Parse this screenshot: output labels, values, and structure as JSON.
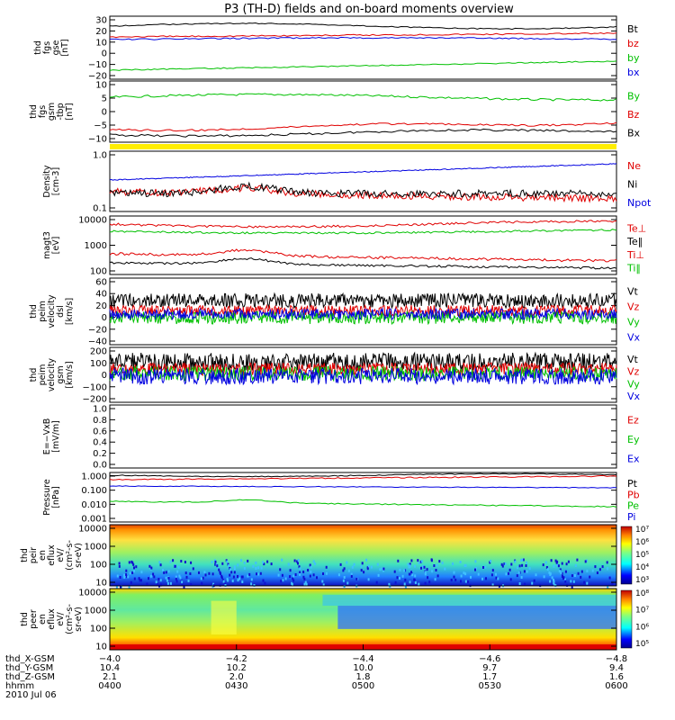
{
  "title": "P3 (TH-D) fields and on-board moments overview",
  "panels": [
    {
      "id": "fgs_gse",
      "ylabel": [
        "thd",
        "fgs",
        "gse",
        "[nT]"
      ],
      "ticks": [
        "30",
        "20",
        "10",
        "0",
        "−10",
        "−20"
      ],
      "legend": [
        {
          "text": "Bt",
          "color": "#000000"
        },
        {
          "text": "bz",
          "color": "#e00000"
        },
        {
          "text": "by",
          "color": "#00c000"
        },
        {
          "text": "bx",
          "color": "#0000e0"
        }
      ]
    },
    {
      "id": "fgs_gsm",
      "ylabel": [
        "thd",
        "fgs",
        "gsm",
        "-tbp",
        "[nT]"
      ],
      "ticks": [
        "10",
        "5",
        "0",
        "−5",
        "−10"
      ],
      "legend": [
        {
          "text": "By",
          "color": "#00c000"
        },
        {
          "text": "Bz",
          "color": "#e00000"
        },
        {
          "text": "Bx",
          "color": "#000000"
        }
      ]
    },
    {
      "id": "density",
      "ylabel": [
        "Density",
        "[cm-3]"
      ],
      "ticks": [
        "1.0",
        "0.1"
      ],
      "legend": [
        {
          "text": "Ne",
          "color": "#e00000"
        },
        {
          "text": "Ni",
          "color": "#000000"
        },
        {
          "text": "Npot",
          "color": "#0000e0"
        }
      ]
    },
    {
      "id": "temp",
      "ylabel": [
        "magt3",
        "[eV]"
      ],
      "ticks": [
        "10000",
        "1000",
        "100"
      ],
      "legend": [
        {
          "text": "Te⊥",
          "color": "#e00000"
        },
        {
          "text": "Te‖",
          "color": "#000000"
        },
        {
          "text": "Ti⊥",
          "color": "#e00000"
        },
        {
          "text": "Ti‖",
          "color": "#00c000"
        }
      ]
    },
    {
      "id": "velocity_dsl",
      "ylabel": [
        "thd",
        "peim",
        "velocity",
        "dsl",
        "[km/s]"
      ],
      "ticks": [
        "60",
        "40",
        "20",
        "0",
        "−20",
        "−40"
      ],
      "legend": [
        {
          "text": "Vt",
          "color": "#000000"
        },
        {
          "text": "Vz",
          "color": "#e00000"
        },
        {
          "text": "Vy",
          "color": "#00c000"
        },
        {
          "text": "Vx",
          "color": "#0000e0"
        }
      ]
    },
    {
      "id": "velocity_gsm",
      "ylabel": [
        "thd",
        "peim",
        "velocity",
        "gsm",
        "[km/s]"
      ],
      "ticks": [
        "200",
        "100",
        "0",
        "−100",
        "−200"
      ],
      "legend": [
        {
          "text": "Vt",
          "color": "#000000"
        },
        {
          "text": "Vz",
          "color": "#e00000"
        },
        {
          "text": "Vy",
          "color": "#00c000"
        },
        {
          "text": "Vx",
          "color": "#0000e0"
        }
      ]
    },
    {
      "id": "efield",
      "ylabel": [
        "E=−VxB",
        "[mV/m]"
      ],
      "ticks": [
        "1.0",
        "0.8",
        "0.6",
        "0.4",
        "0.2",
        "0.0"
      ],
      "legend": [
        {
          "text": "Ez",
          "color": "#e00000"
        },
        {
          "text": "Ey",
          "color": "#00c000"
        },
        {
          "text": "Ex",
          "color": "#0000e0"
        }
      ]
    },
    {
      "id": "pressure",
      "ylabel": [
        "Pressure",
        "[nPa]"
      ],
      "ticks": [
        "1.000",
        "0.100",
        "0.010",
        "0.001"
      ],
      "legend": [
        {
          "text": "Pt",
          "color": "#000000"
        },
        {
          "text": "Pb",
          "color": "#e00000"
        },
        {
          "text": "Pe",
          "color": "#00c000"
        },
        {
          "text": "Pi",
          "color": "#0000e0"
        }
      ]
    },
    {
      "id": "peir",
      "ylabel": [
        "thd",
        "peir",
        "en",
        "eflux",
        "eV/",
        "(cm²-s-",
        "sr-eV)"
      ],
      "ticks": [
        "10000",
        "1000",
        "100",
        "10"
      ],
      "colorbar": [
        "10⁷",
        "10⁶",
        "10⁵",
        "10⁴",
        "10³"
      ]
    },
    {
      "id": "peer",
      "ylabel": [
        "thd",
        "peer",
        "en",
        "eflux",
        "eV/",
        "(cm²-s-",
        "sr-eV)"
      ],
      "ticks": [
        "10000",
        "1000",
        "100",
        "10"
      ],
      "colorbar": [
        "10⁸",
        "10⁷",
        "10⁶",
        "10⁵"
      ]
    }
  ],
  "xaxis": {
    "rows": [
      {
        "label": "thd_X-GSM",
        "values": [
          "−4.0",
          "−4.2",
          "−4.4",
          "−4.6",
          "−4.8"
        ]
      },
      {
        "label": "thd_Y-GSM",
        "values": [
          "10.4",
          "10.2",
          "10.0",
          "9.7",
          "9.4"
        ]
      },
      {
        "label": "thd_Z-GSM",
        "values": [
          "2.1",
          "2.0",
          "1.8",
          "1.7",
          "1.6"
        ]
      },
      {
        "label": "hhmm",
        "values": [
          "0400",
          "0430",
          "0500",
          "0530",
          "0600"
        ]
      }
    ],
    "date": "2010 Jul 06"
  },
  "chart_data": {
    "type": "line",
    "title": "P3 (TH-D) fields and on-board moments overview",
    "x": [
      "0400",
      "0430",
      "0500",
      "0530",
      "0600"
    ],
    "panels": [
      {
        "ylabel": "thd fgs gse [nT]",
        "ylim": [
          -20,
          30
        ],
        "series": [
          {
            "name": "Bt",
            "values": [
              24,
              24,
              23,
              22,
              24
            ]
          },
          {
            "name": "bz",
            "values": [
              13,
              15,
              16,
              16,
              17
            ]
          },
          {
            "name": "by",
            "values": [
              -18,
              -16,
              -13,
              -12,
              -9
            ]
          },
          {
            "name": "bx",
            "values": [
              12,
              14,
              14,
              13,
              11
            ]
          }
        ]
      },
      {
        "ylabel": "thd fgs gsm -tbp [nT]",
        "ylim": [
          -13,
          12
        ],
        "series": [
          {
            "name": "By",
            "values": [
              7,
              8,
              7,
              8,
              8
            ]
          },
          {
            "name": "Bz",
            "values": [
              -6,
              -5,
              -3,
              -4,
              -2
            ]
          },
          {
            "name": "Bx",
            "values": [
              -8,
              -7,
              -5,
              -7,
              -6
            ]
          }
        ]
      },
      {
        "ylabel": "Density [cm-3]",
        "ylim": [
          0.1,
          1.0
        ],
        "scale": "log",
        "series": [
          {
            "name": "Ne",
            "values": [
              0.2,
              0.25,
              0.18,
              0.17,
              0.14
            ]
          },
          {
            "name": "Ni",
            "values": [
              0.18,
              0.2,
              0.17,
              0.17,
              0.17
            ]
          },
          {
            "name": "Npot",
            "values": [
              0.35,
              0.45,
              0.5,
              0.6,
              0.6
            ]
          }
        ]
      },
      {
        "ylabel": "magt3 [eV]",
        "ylim": [
          100,
          10000
        ],
        "scale": "log",
        "series": [
          {
            "name": "Te⊥",
            "values": [
              500,
              350,
              380,
              380,
              350
            ]
          },
          {
            "name": "Te‖",
            "values": [
              400,
              270,
              300,
              300,
              280
            ]
          },
          {
            "name": "Ti⊥",
            "values": [
              6000,
              5500,
              5000,
              5000,
              5200
            ]
          },
          {
            "name": "Ti‖",
            "values": [
              4000,
              3800,
              3600,
              3500,
              3600
            ]
          }
        ]
      },
      {
        "ylabel": "thd peim velocity dsl [km/s]",
        "ylim": [
          -40,
          60
        ],
        "series": [
          {
            "name": "Vt",
            "values": [
              30,
              30,
              30,
              30,
              30
            ]
          },
          {
            "name": "Vz",
            "values": [
              20,
              20,
              20,
              20,
              20
            ]
          },
          {
            "name": "Vy",
            "values": [
              0,
              0,
              0,
              0,
              0
            ]
          },
          {
            "name": "Vx",
            "values": [
              5,
              5,
              5,
              5,
              5
            ]
          }
        ]
      },
      {
        "ylabel": "thd peim velocity gsm [km/s]",
        "ylim": [
          -200,
          200
        ],
        "series": [
          {
            "name": "Vt",
            "values": [
              50,
              50,
              50,
              50,
              50
            ]
          },
          {
            "name": "Vz",
            "values": [
              10,
              10,
              10,
              10,
              10
            ]
          },
          {
            "name": "Vy",
            "values": [
              0,
              0,
              0,
              0,
              0
            ]
          },
          {
            "name": "Vx",
            "values": [
              -20,
              -20,
              -20,
              -20,
              -20
            ]
          }
        ]
      },
      {
        "ylabel": "E=-VxB [mV/m]",
        "ylim": [
          0,
          1
        ],
        "series": []
      },
      {
        "ylabel": "Pressure [nPa]",
        "ylim": [
          0.001,
          1
        ],
        "scale": "log",
        "series": [
          {
            "name": "Pt",
            "values": [
              0.4,
              0.42,
              0.45,
              0.48,
              0.45
            ]
          },
          {
            "name": "Pb",
            "values": [
              0.25,
              0.3,
              0.35,
              0.38,
              0.4
            ]
          },
          {
            "name": "Pe",
            "values": [
              0.02,
              0.02,
              0.012,
              0.01,
              0.008
            ]
          },
          {
            "name": "Pi",
            "values": [
              0.12,
              0.12,
              0.11,
              0.1,
              0.1
            ]
          }
        ]
      }
    ],
    "spectrograms": [
      {
        "ylabel": "thd peir en eflux",
        "ylim": [
          10,
          10000
        ],
        "scale": "log",
        "colorbar_range": [
          "10³",
          "10⁷"
        ]
      },
      {
        "ylabel": "thd peer en eflux",
        "ylim": [
          10,
          10000
        ],
        "scale": "log",
        "colorbar_range": [
          "10⁵",
          "10⁸"
        ]
      }
    ]
  }
}
